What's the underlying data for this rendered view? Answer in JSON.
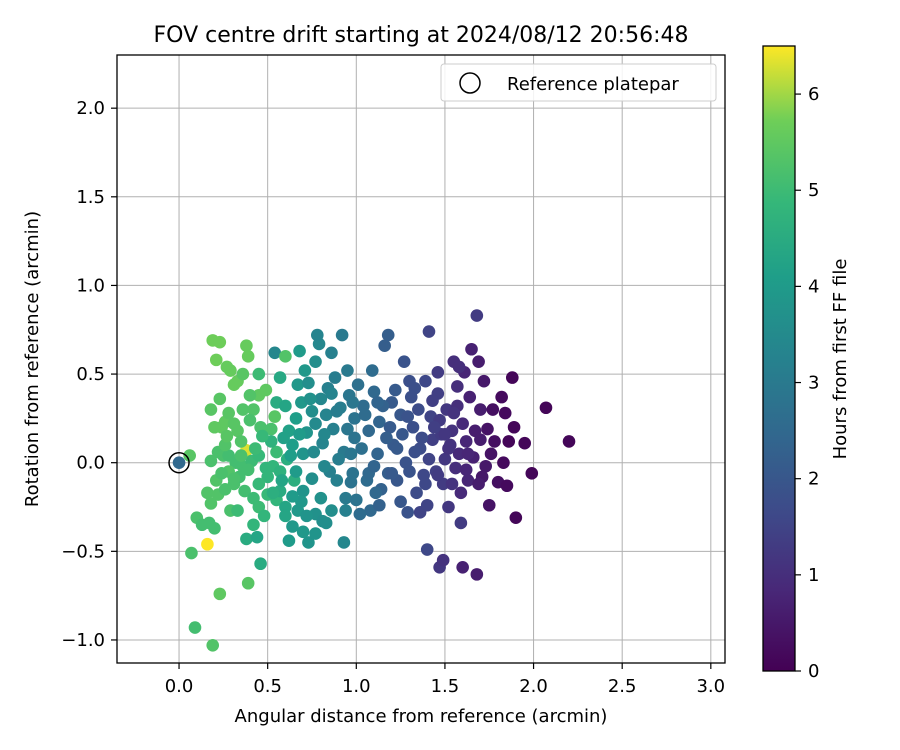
{
  "chart_data": {
    "type": "scatter",
    "title": "FOV centre drift starting at 2024/08/12 20:56:48",
    "xlabel": "Angular distance from reference (arcmin)",
    "ylabel": "Rotation from reference (arcmin)",
    "xlim": [
      -0.35,
      3.08
    ],
    "ylim": [
      -1.13,
      2.3
    ],
    "x_ticks": [
      "0.0",
      "0.5",
      "1.0",
      "1.5",
      "2.0",
      "2.5",
      "3.0"
    ],
    "y_ticks": [
      "−1.0",
      "−0.5",
      "0.0",
      "0.5",
      "1.0",
      "1.5",
      "2.0"
    ],
    "grid": true,
    "legend": {
      "placement": "top-right",
      "entries": [
        {
          "label": "Reference platepar",
          "marker": "open-circle"
        }
      ]
    },
    "reference_point": {
      "x": 0.0,
      "y": 0.0
    },
    "colorbar": {
      "label": "Hours from first FF file",
      "range": [
        0,
        6.5
      ],
      "ticks": [
        "0",
        "1",
        "2",
        "3",
        "4",
        "5",
        "6"
      ],
      "colormap": "viridis"
    },
    "points": [
      [
        0.0,
        0.0,
        2.5
      ],
      [
        0.06,
        0.04,
        5.4
      ],
      [
        0.19,
        0.69,
        5.7
      ],
      [
        0.23,
        0.68,
        5.7
      ],
      [
        0.21,
        0.58,
        5.7
      ],
      [
        0.27,
        0.54,
        5.6
      ],
      [
        0.31,
        0.44,
        5.6
      ],
      [
        0.33,
        0.46,
        5.6
      ],
      [
        0.38,
        0.66,
        5.6
      ],
      [
        0.39,
        0.6,
        5.6
      ],
      [
        0.45,
        0.38,
        5.5
      ],
      [
        0.49,
        0.41,
        5.5
      ],
      [
        0.54,
        0.26,
        5.4
      ],
      [
        0.54,
        0.62,
        3.4
      ],
      [
        0.6,
        0.6,
        5.3
      ],
      [
        0.18,
        0.3,
        5.4
      ],
      [
        0.23,
        0.36,
        5.4
      ],
      [
        0.24,
        0.2,
        5.5
      ],
      [
        0.26,
        0.23,
        5.5
      ],
      [
        0.28,
        0.28,
        5.4
      ],
      [
        0.33,
        0.18,
        5.4
      ],
      [
        0.36,
        0.3,
        5.3
      ],
      [
        0.4,
        0.38,
        5.3
      ],
      [
        0.42,
        0.3,
        5.3
      ],
      [
        0.46,
        0.2,
        5.2
      ],
      [
        0.52,
        0.19,
        5.2
      ],
      [
        0.55,
        0.06,
        5.0
      ],
      [
        0.18,
        0.01,
        5.2
      ],
      [
        0.22,
        0.06,
        5.2
      ],
      [
        0.25,
        0.04,
        5.2
      ],
      [
        0.28,
        0.04,
        5.1
      ],
      [
        0.32,
        0.0,
        5.1
      ],
      [
        0.36,
        -0.02,
        5.1
      ],
      [
        0.38,
        0.07,
        6.3
      ],
      [
        0.41,
        0.01,
        5.0
      ],
      [
        0.45,
        0.04,
        4.9
      ],
      [
        0.49,
        -0.03,
        4.8
      ],
      [
        0.53,
        -0.02,
        4.8
      ],
      [
        0.57,
        -0.05,
        4.7
      ],
      [
        0.61,
        0.02,
        4.6
      ],
      [
        0.65,
        -0.1,
        4.6
      ],
      [
        0.16,
        -0.17,
        5.3
      ],
      [
        0.18,
        -0.23,
        5.3
      ],
      [
        0.21,
        -0.1,
        5.3
      ],
      [
        0.22,
        -0.18,
        5.3
      ],
      [
        0.26,
        -0.15,
        5.2
      ],
      [
        0.29,
        -0.27,
        5.2
      ],
      [
        0.31,
        -0.12,
        5.2
      ],
      [
        0.34,
        -0.08,
        5.1
      ],
      [
        0.37,
        -0.16,
        5.1
      ],
      [
        0.42,
        -0.2,
        5.0
      ],
      [
        0.45,
        -0.25,
        5.0
      ],
      [
        0.5,
        -0.18,
        4.9
      ],
      [
        0.55,
        -0.21,
        4.8
      ],
      [
        0.1,
        -0.31,
        5.2
      ],
      [
        0.13,
        -0.35,
        5.1
      ],
      [
        0.17,
        -0.34,
        5.1
      ],
      [
        0.2,
        -0.37,
        5.1
      ],
      [
        0.16,
        -0.46,
        6.5
      ],
      [
        0.38,
        -0.43,
        4.5
      ],
      [
        0.44,
        -0.42,
        4.3
      ],
      [
        0.07,
        -0.51,
        5.2
      ],
      [
        0.46,
        -0.57,
        4.5
      ],
      [
        0.23,
        -0.74,
        5.5
      ],
      [
        0.39,
        -0.68,
        5.4
      ],
      [
        0.09,
        -0.93,
        5.1
      ],
      [
        0.19,
        -1.03,
        5.3
      ],
      [
        0.57,
        -0.16,
        4.5
      ],
      [
        0.6,
        -0.25,
        4.3
      ],
      [
        0.62,
        -0.44,
        4.0
      ],
      [
        0.64,
        -0.36,
        3.9
      ],
      [
        0.67,
        -0.27,
        3.9
      ],
      [
        0.7,
        -0.16,
        3.8
      ],
      [
        0.73,
        -0.45,
        3.8
      ],
      [
        0.77,
        -0.4,
        3.8
      ],
      [
        0.77,
        -0.29,
        3.7
      ],
      [
        0.8,
        -0.2,
        3.7
      ],
      [
        0.83,
        -0.34,
        3.6
      ],
      [
        0.86,
        -0.27,
        3.6
      ],
      [
        0.93,
        -0.45,
        3.4
      ],
      [
        0.62,
        0.18,
        4.2
      ],
      [
        0.64,
        0.1,
        4.1
      ],
      [
        0.66,
        0.25,
        4.1
      ],
      [
        0.67,
        0.44,
        3.9
      ],
      [
        0.69,
        0.34,
        3.9
      ],
      [
        0.7,
        0.05,
        3.8
      ],
      [
        0.72,
        0.17,
        3.8
      ],
      [
        0.73,
        0.45,
        3.6
      ],
      [
        0.75,
        0.29,
        3.6
      ],
      [
        0.76,
        0.06,
        3.5
      ],
      [
        0.77,
        0.22,
        3.5
      ],
      [
        0.79,
        0.67,
        3.4
      ],
      [
        0.8,
        0.36,
        3.4
      ],
      [
        0.81,
        0.11,
        3.3
      ],
      [
        0.83,
        0.27,
        3.3
      ],
      [
        0.84,
        0.42,
        3.2
      ],
      [
        0.78,
        0.72,
        3.3
      ],
      [
        0.85,
        -0.05,
        3.2
      ],
      [
        0.87,
        0.19,
        3.2
      ],
      [
        0.88,
        0.48,
        3.1
      ],
      [
        0.91,
        0.31,
        3.1
      ],
      [
        0.92,
        0.72,
        3.0
      ],
      [
        0.93,
        0.06,
        3.0
      ],
      [
        0.94,
        -0.2,
        3.0
      ],
      [
        0.95,
        0.19,
        2.9
      ],
      [
        0.96,
        0.38,
        2.9
      ],
      [
        0.98,
        -0.06,
        2.8
      ],
      [
        0.99,
        0.25,
        2.8
      ],
      [
        1.0,
        -0.21,
        2.8
      ],
      [
        1.01,
        0.44,
        2.7
      ],
      [
        1.03,
        0.08,
        2.7
      ],
      [
        1.04,
        0.32,
        2.6
      ],
      [
        1.06,
        -0.1,
        2.6
      ],
      [
        1.07,
        0.18,
        2.5
      ],
      [
        1.08,
        -0.27,
        2.5
      ],
      [
        1.1,
        0.4,
        2.5
      ],
      [
        1.12,
        0.05,
        2.4
      ],
      [
        1.13,
        0.23,
        2.4
      ],
      [
        1.14,
        -0.15,
        2.3
      ],
      [
        1.16,
        0.66,
        2.2
      ],
      [
        1.18,
        0.72,
        2.2
      ],
      [
        1.18,
        -0.06,
        2.2
      ],
      [
        1.2,
        0.34,
        2.1
      ],
      [
        1.21,
        0.1,
        2.1
      ],
      [
        1.23,
        -0.1,
        2.0
      ],
      [
        1.25,
        0.27,
        2.0
      ],
      [
        1.27,
        0.57,
        1.9
      ],
      [
        1.28,
        0.0,
        1.9
      ],
      [
        1.29,
        -0.28,
        1.9
      ],
      [
        1.3,
        0.46,
        1.8
      ],
      [
        1.32,
        0.2,
        1.8
      ],
      [
        1.33,
        0.42,
        1.8
      ],
      [
        1.34,
        -0.17,
        1.7
      ],
      [
        1.35,
        0.3,
        1.7
      ],
      [
        1.36,
        0.08,
        1.7
      ],
      [
        1.38,
        -0.07,
        1.6
      ],
      [
        1.39,
        0.46,
        1.6
      ],
      [
        1.4,
        -0.24,
        1.5
      ],
      [
        1.41,
        0.74,
        1.5
      ],
      [
        1.42,
        0.26,
        1.5
      ],
      [
        1.43,
        0.13,
        1.4
      ],
      [
        1.45,
        -0.05,
        1.4
      ],
      [
        1.46,
        0.39,
        1.4
      ],
      [
        1.47,
        0.24,
        1.3
      ],
      [
        1.48,
        0.16,
        1.3
      ],
      [
        1.49,
        -0.12,
        1.3
      ],
      [
        1.5,
        0.02,
        1.2
      ],
      [
        1.51,
        0.3,
        1.2
      ],
      [
        1.52,
        -0.25,
        1.2
      ],
      [
        1.53,
        0.1,
        1.1
      ],
      [
        1.54,
        0.18,
        1.1
      ],
      [
        1.55,
        0.57,
        1.0
      ],
      [
        1.56,
        -0.03,
        1.0
      ],
      [
        1.57,
        0.43,
        1.0
      ],
      [
        1.58,
        0.05,
        0.9
      ],
      [
        1.59,
        -0.17,
        0.9
      ],
      [
        1.6,
        0.22,
        0.9
      ],
      [
        1.61,
        0.51,
        0.8
      ],
      [
        1.62,
        0.12,
        0.8
      ],
      [
        1.63,
        -0.1,
        0.8
      ],
      [
        1.64,
        0.37,
        0.7
      ],
      [
        1.65,
        0.64,
        0.7
      ],
      [
        1.66,
        0.03,
        0.7
      ],
      [
        1.67,
        0.18,
        0.6
      ],
      [
        1.68,
        0.83,
        1.3
      ],
      [
        1.69,
        0.57,
        0.6
      ],
      [
        1.7,
        0.3,
        0.6
      ],
      [
        1.71,
        -0.08,
        0.5
      ],
      [
        1.72,
        0.46,
        0.5
      ],
      [
        1.73,
        -0.02,
        0.5
      ],
      [
        1.74,
        0.19,
        0.4
      ],
      [
        1.75,
        -0.24,
        0.4
      ],
      [
        1.76,
        0.05,
        0.4
      ],
      [
        1.77,
        0.3,
        0.3
      ],
      [
        1.78,
        0.12,
        0.3
      ],
      [
        1.8,
        -0.11,
        0.3
      ],
      [
        1.82,
        0.37,
        0.2
      ],
      [
        1.83,
        0.0,
        0.2
      ],
      [
        1.84,
        0.28,
        0.2
      ],
      [
        1.85,
        -0.13,
        0.2
      ],
      [
        1.86,
        0.12,
        0.1
      ],
      [
        1.88,
        0.48,
        0.1
      ],
      [
        1.89,
        0.2,
        0.1
      ],
      [
        1.9,
        -0.31,
        0.1
      ],
      [
        1.95,
        0.11,
        0.1
      ],
      [
        1.99,
        -0.06,
        0.1
      ],
      [
        2.07,
        0.31,
        0.1
      ],
      [
        2.2,
        0.12,
        0.1
      ],
      [
        1.4,
        -0.49,
        1.6
      ],
      [
        1.47,
        -0.59,
        1.2
      ],
      [
        1.49,
        -0.55,
        1.1
      ],
      [
        1.59,
        -0.34,
        1.3
      ],
      [
        1.6,
        -0.59,
        0.7
      ],
      [
        1.68,
        -0.63,
        0.6
      ],
      [
        1.36,
        -0.28,
        1.5
      ],
      [
        1.25,
        -0.22,
        2.0
      ],
      [
        1.13,
        -0.24,
        2.3
      ],
      [
        1.02,
        -0.29,
        2.6
      ],
      [
        0.97,
        -0.11,
        2.8
      ],
      [
        1.07,
        -0.06,
        2.5
      ],
      [
        1.19,
        0.2,
        2.1
      ],
      [
        1.15,
        0.32,
        2.3
      ],
      [
        0.97,
        0.05,
        2.9
      ],
      [
        0.9,
        0.02,
        3.1
      ],
      [
        0.89,
        -0.1,
        3.2
      ],
      [
        0.82,
        -0.02,
        3.4
      ],
      [
        0.75,
        -0.09,
        3.6
      ],
      [
        0.72,
        -0.3,
        3.8
      ],
      [
        0.69,
        -0.22,
        3.9
      ],
      [
        0.66,
        -0.05,
        4.0
      ],
      [
        0.63,
        0.04,
        4.1
      ],
      [
        0.59,
        0.14,
        4.2
      ],
      [
        0.58,
        -0.1,
        4.3
      ],
      [
        0.55,
        0.34,
        4.5
      ],
      [
        0.52,
        0.12,
        4.7
      ],
      [
        0.5,
        -0.08,
        4.8
      ],
      [
        0.47,
        0.15,
        4.9
      ],
      [
        0.43,
        0.08,
        5.0
      ],
      [
        0.4,
        0.24,
        5.2
      ],
      [
        0.35,
        0.12,
        5.3
      ],
      [
        0.31,
        0.22,
        5.4
      ],
      [
        0.28,
        -0.05,
        5.3
      ],
      [
        0.26,
        0.1,
        5.3
      ],
      [
        0.24,
        -0.06,
        5.2
      ],
      [
        0.33,
        -0.27,
        5.0
      ],
      [
        0.48,
        -0.3,
        4.8
      ],
      [
        0.6,
        -0.3,
        4.3
      ],
      [
        0.7,
        -0.39,
        3.9
      ],
      [
        0.81,
        -0.33,
        3.6
      ],
      [
        0.94,
        -0.27,
        3.2
      ],
      [
        1.11,
        -0.17,
        2.5
      ],
      [
        1.23,
        0.08,
        2.1
      ],
      [
        1.33,
        0.06,
        1.8
      ],
      [
        1.44,
        0.2,
        1.4
      ],
      [
        1.52,
        0.08,
        1.1
      ],
      [
        1.57,
        0.32,
        1.0
      ],
      [
        1.63,
        0.05,
        0.8
      ],
      [
        1.7,
        0.13,
        0.6
      ],
      [
        0.86,
        0.62,
        3.2
      ],
      [
        0.95,
        0.52,
        3.0
      ],
      [
        1.09,
        0.52,
        2.6
      ],
      [
        1.22,
        0.41,
        2.1
      ],
      [
        1.31,
        0.37,
        1.8
      ],
      [
        1.46,
        0.51,
        1.3
      ],
      [
        1.58,
        0.54,
        1.0
      ],
      [
        0.71,
        0.52,
        3.9
      ],
      [
        0.68,
        0.63,
        4.0
      ],
      [
        0.57,
        0.48,
        4.4
      ],
      [
        0.45,
        0.5,
        5.0
      ],
      [
        0.36,
        0.5,
        5.4
      ],
      [
        0.29,
        0.52,
        5.6
      ],
      [
        0.2,
        0.2,
        5.5
      ],
      [
        0.6,
        0.32,
        4.3
      ],
      [
        0.68,
        0.16,
        4.0
      ],
      [
        0.74,
        0.36,
        3.7
      ],
      [
        0.82,
        0.16,
        3.4
      ],
      [
        0.89,
        0.29,
        3.1
      ],
      [
        0.98,
        0.34,
        2.9
      ],
      [
        1.05,
        0.27,
        2.6
      ],
      [
        1.12,
        0.34,
        2.4
      ],
      [
        1.17,
        0.14,
        2.2
      ],
      [
        1.26,
        0.16,
        2.0
      ],
      [
        1.37,
        0.14,
        1.7
      ],
      [
        1.41,
        0.02,
        1.5
      ],
      [
        1.5,
        0.16,
        1.2
      ],
      [
        1.55,
        0.28,
        1.1
      ],
      [
        1.43,
        0.35,
        1.4
      ],
      [
        1.29,
        0.26,
        1.9
      ],
      [
        0.77,
        0.57,
        3.6
      ],
      [
        0.86,
        0.39,
        3.3
      ],
      [
        0.99,
        0.14,
        2.8
      ],
      [
        1.1,
        -0.02,
        2.4
      ],
      [
        1.2,
        -0.06,
        2.1
      ],
      [
        1.3,
        -0.05,
        1.9
      ],
      [
        1.39,
        -0.12,
        1.6
      ],
      [
        1.46,
        -0.07,
        1.3
      ],
      [
        1.54,
        -0.12,
        1.1
      ],
      [
        1.62,
        -0.04,
        0.8
      ],
      [
        1.69,
        -0.12,
        0.6
      ],
      [
        0.64,
        -0.19,
        4.0
      ],
      [
        0.53,
        -0.17,
        4.6
      ],
      [
        0.45,
        -0.12,
        4.9
      ],
      [
        0.39,
        -0.04,
        5.1
      ],
      [
        0.35,
        0.04,
        5.2
      ],
      [
        0.31,
        -0.09,
        5.2
      ],
      [
        0.27,
        0.15,
        5.4
      ],
      [
        0.42,
        -0.35,
        4.8
      ]
    ]
  }
}
